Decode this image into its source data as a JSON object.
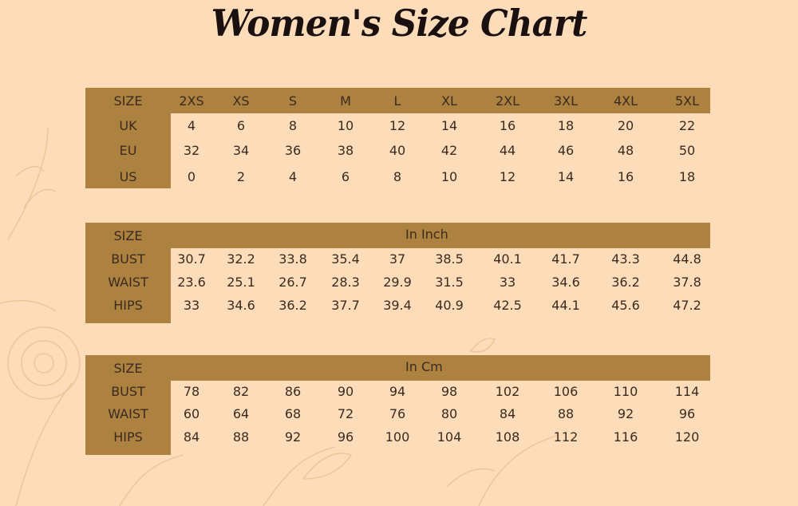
{
  "title": "Women's Size Chart",
  "colors": {
    "background": "#fcdcb9",
    "band": "#ad8140",
    "text": "#3b2b1f"
  },
  "size_table": {
    "header_label": "SIZE",
    "sizes": [
      "2XS",
      "XS",
      "S",
      "M",
      "L",
      "XL",
      "2XL",
      "3XL",
      "4XL",
      "5XL"
    ],
    "rows": [
      {
        "label": "UK",
        "values": [
          "4",
          "6",
          "8",
          "10",
          "12",
          "14",
          "16",
          "18",
          "20",
          "22"
        ]
      },
      {
        "label": "EU",
        "values": [
          "32",
          "34",
          "36",
          "38",
          "40",
          "42",
          "44",
          "46",
          "48",
          "50"
        ]
      },
      {
        "label": "US",
        "values": [
          "0",
          "2",
          "4",
          "6",
          "8",
          "10",
          "12",
          "14",
          "16",
          "18"
        ]
      }
    ]
  },
  "inch_table": {
    "header_label": "SIZE",
    "unit": "In Inch",
    "rows": [
      {
        "label": "BUST",
        "values": [
          "30.7",
          "32.2",
          "33.8",
          "35.4",
          "37",
          "38.5",
          "40.1",
          "41.7",
          "43.3",
          "44.8"
        ]
      },
      {
        "label": "WAIST",
        "values": [
          "23.6",
          "25.1",
          "26.7",
          "28.3",
          "29.9",
          "31.5",
          "33",
          "34.6",
          "36.2",
          "37.8"
        ]
      },
      {
        "label": "HIPS",
        "values": [
          "33",
          "34.6",
          "36.2",
          "37.7",
          "39.4",
          "40.9",
          "42.5",
          "44.1",
          "45.6",
          "47.2"
        ]
      }
    ]
  },
  "cm_table": {
    "header_label": "SIZE",
    "unit": "In Cm",
    "rows": [
      {
        "label": "BUST",
        "values": [
          "78",
          "82",
          "86",
          "90",
          "94",
          "98",
          "102",
          "106",
          "110",
          "114"
        ]
      },
      {
        "label": "WAIST",
        "values": [
          "60",
          "64",
          "68",
          "72",
          "76",
          "80",
          "84",
          "88",
          "92",
          "96"
        ]
      },
      {
        "label": "HIPS",
        "values": [
          "84",
          "88",
          "92",
          "96",
          "100",
          "104",
          "108",
          "112",
          "116",
          "120"
        ]
      }
    ]
  }
}
